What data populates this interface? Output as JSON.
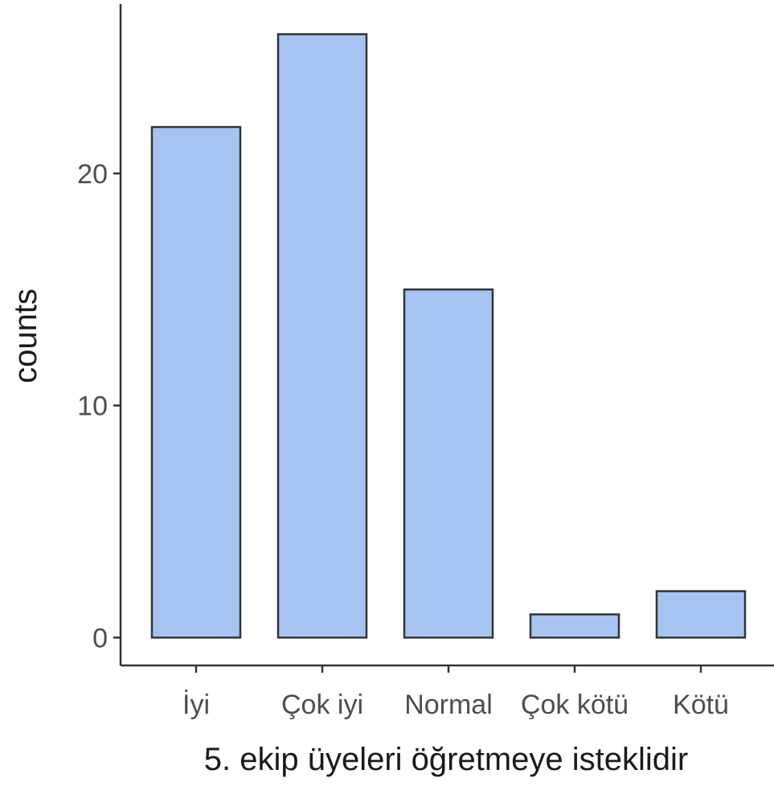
{
  "chart_data": {
    "type": "bar",
    "categories": [
      "İyi",
      "Çok iyi",
      "Normal",
      "Çok kötü",
      "Kötü"
    ],
    "values": [
      22,
      26,
      15,
      1,
      2
    ],
    "title": "",
    "xlabel": "5. ekip  üyeleri öğretmeye isteklidir",
    "ylabel": "counts",
    "ylim": [
      -1.2,
      27.3
    ],
    "yticks": [
      0,
      10,
      20
    ],
    "grid": false,
    "colors": {
      "bar_fill": "#a6c4f2",
      "bar_stroke": "#333333",
      "axis": "#333333"
    }
  }
}
